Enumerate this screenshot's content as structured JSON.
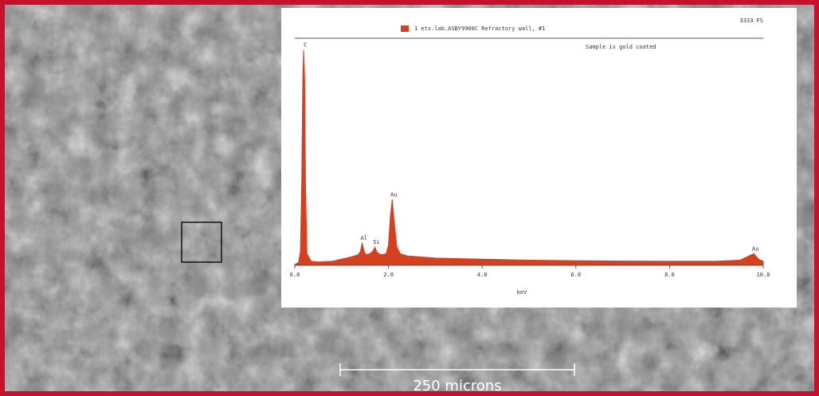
{
  "scale_bar": {
    "label": "250 microns"
  },
  "chart_data": {
    "type": "area",
    "legend": "1 ets.lab.ASBY9900C Refractory wall, #1",
    "corner_label": "3333 FS",
    "annotation": "Sample is gold coated",
    "x_label": "keV",
    "color": "#d6401f",
    "xlim": [
      0,
      10
    ],
    "xticks": [
      {
        "value": 0,
        "label": "0.0"
      },
      {
        "value": 2,
        "label": "2.0"
      },
      {
        "value": 4,
        "label": "4.0"
      },
      {
        "value": 6,
        "label": "6.0"
      },
      {
        "value": 8,
        "label": "8.0"
      },
      {
        "value": 10,
        "label": "10.0"
      }
    ],
    "ylim": [
      0,
      100
    ],
    "x": [
      0.0,
      0.08,
      0.12,
      0.15,
      0.17,
      0.19,
      0.21,
      0.23,
      0.26,
      0.35,
      0.5,
      0.8,
      1.0,
      1.2,
      1.35,
      1.4,
      1.44,
      1.48,
      1.52,
      1.6,
      1.66,
      1.71,
      1.76,
      1.85,
      1.95,
      2.0,
      2.04,
      2.08,
      2.12,
      2.18,
      2.25,
      2.4,
      2.7,
      3.0,
      4.0,
      5.0,
      6.0,
      7.0,
      8.0,
      9.0,
      9.5,
      9.7,
      9.8,
      9.9,
      10.0
    ],
    "values": [
      0,
      1,
      6,
      40,
      85,
      99,
      85,
      35,
      5,
      1.5,
      1.2,
      1.5,
      2.5,
      3.5,
      4.5,
      6,
      10,
      6,
      4.5,
      5,
      6,
      8,
      5.5,
      4.5,
      5,
      9,
      22,
      30,
      20,
      8,
      5,
      4,
      3.5,
      3,
      2.5,
      2,
      1.8,
      1.6,
      1.5,
      1.5,
      2,
      4,
      5,
      2.5,
      1.5
    ],
    "peaks": [
      {
        "label": "C",
        "x": 0.19,
        "y": 99
      },
      {
        "label": "Al",
        "x": 1.44,
        "y": 10
      },
      {
        "label": "Si",
        "x": 1.71,
        "y": 8
      },
      {
        "label": "Au",
        "x": 2.08,
        "y": 30
      },
      {
        "label": "Au",
        "x": 9.8,
        "y": 5
      }
    ]
  }
}
